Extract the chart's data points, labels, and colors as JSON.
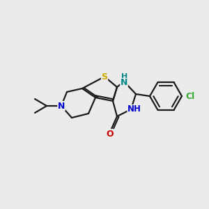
{
  "background_color": "#ebebeb",
  "bond_color": "#1a1a1a",
  "atom_colors": {
    "S": "#ccaa00",
    "N": "#0000cc",
    "NH": "#0000cc",
    "NH_teal": "#008888",
    "O": "#cc0000",
    "Cl": "#33aa33",
    "C": "#1a1a1a"
  },
  "figsize": [
    3.0,
    3.0
  ],
  "dpi": 100
}
